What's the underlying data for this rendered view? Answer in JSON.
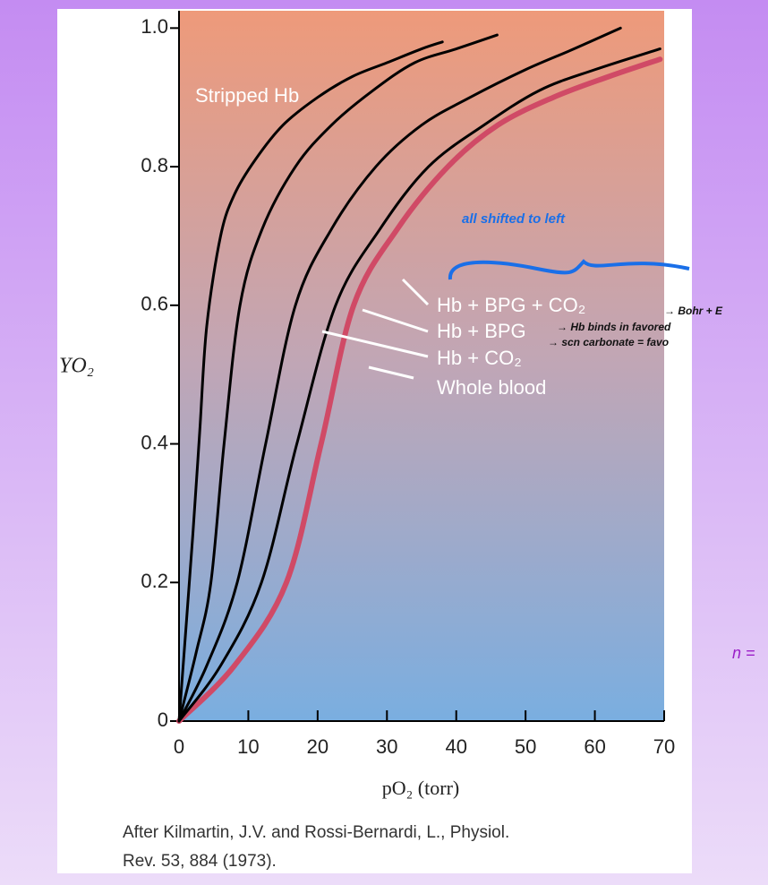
{
  "chart_data": {
    "type": "line",
    "x_label": "pO₂ (torr)",
    "y_label": "YO₂",
    "xlim": [
      0,
      70
    ],
    "ylim": [
      0,
      1.025
    ],
    "xticks": [
      0,
      10,
      20,
      30,
      40,
      50,
      60,
      70
    ],
    "yticks": [
      0,
      0.2,
      0.4,
      0.6,
      0.8,
      {
        "value": 1,
        "label": "1.0"
      }
    ],
    "series": [
      {
        "name": "Stripped Hb",
        "color": "#000000",
        "x": [
          0,
          2,
          3,
          4,
          6,
          8,
          11,
          15,
          20,
          25,
          30,
          35,
          38
        ],
        "values": [
          0,
          0.27,
          0.42,
          0.57,
          0.7,
          0.76,
          0.81,
          0.86,
          0.9,
          0.93,
          0.95,
          0.97,
          0.98
        ]
      },
      {
        "name": "Hb + CO₂",
        "color": "#000000",
        "x": [
          0,
          2.5,
          4.6,
          6.5,
          8.8,
          12,
          16.8,
          22,
          28,
          34,
          40,
          45.9
        ],
        "values": [
          0,
          0.1,
          0.2,
          0.4,
          0.6,
          0.71,
          0.8,
          0.86,
          0.91,
          0.95,
          0.97,
          0.99
        ]
      },
      {
        "name": "Hb + BPG",
        "color": "#000000",
        "x": [
          0,
          4,
          8.4,
          12.5,
          16.8,
          22,
          28.4,
          35,
          42,
          50,
          57,
          63.7
        ],
        "values": [
          0,
          0.08,
          0.2,
          0.4,
          0.6,
          0.71,
          0.8,
          0.86,
          0.9,
          0.94,
          0.97,
          1
        ]
      },
      {
        "name": "Hb + BPG + CO₂",
        "color": "#000000",
        "x": [
          0,
          6,
          11.9,
          17,
          22.6,
          29,
          36,
          44,
          52,
          60,
          69.4
        ],
        "values": [
          0,
          0.08,
          0.2,
          0.4,
          0.6,
          0.71,
          0.8,
          0.86,
          0.91,
          0.94,
          0.97
        ]
      },
      {
        "name": "Whole blood",
        "color": "#d04a66",
        "x": [
          0,
          8,
          15.5,
          20.5,
          25.2,
          31.5,
          38.8,
          46,
          54,
          62,
          69.4
        ],
        "values": [
          0,
          0.08,
          0.2,
          0.4,
          0.6,
          0.71,
          0.8,
          0.86,
          0.9,
          0.93,
          0.955
        ]
      }
    ],
    "annotations": [
      "all shifted to left",
      "→ Bohr + E",
      "→ Hb binds in favored",
      "→ scn carbonate = favo",
      "n ="
    ],
    "caption": [
      "After Kilmartin, J.V. and Rossi-Bernardi, L., Physiol.",
      "Rev. 53, 884 (1973)."
    ]
  }
}
